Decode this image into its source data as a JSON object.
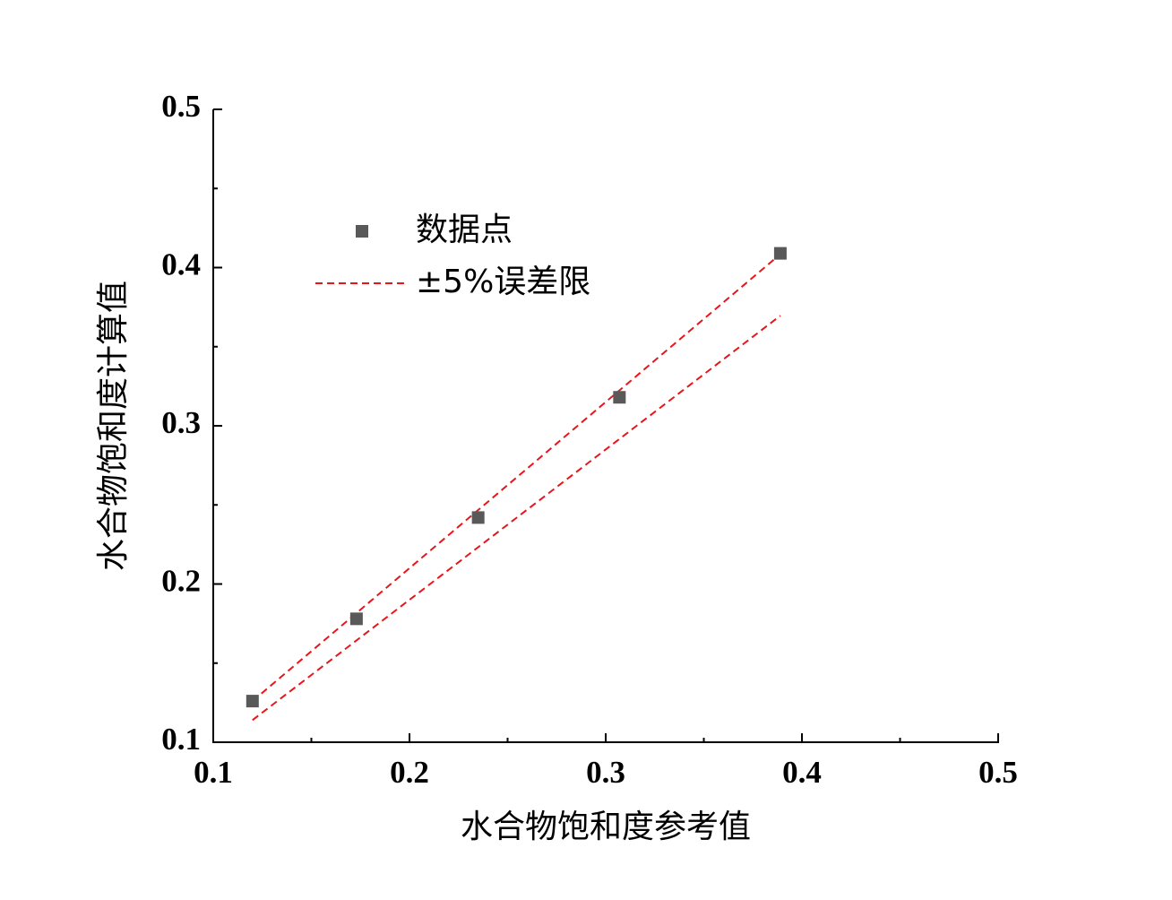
{
  "chart_data": {
    "type": "scatter",
    "x_label": "水合物饱和度参考值",
    "y_label": "水合物饱和度计算值",
    "series": [
      {
        "name": "数据点",
        "color": "#595959",
        "x": [
          0.12,
          0.173,
          0.235,
          0.307,
          0.389
        ],
        "values": [
          0.126,
          0.178,
          0.242,
          0.318,
          0.409
        ]
      }
    ],
    "limit_lines": {
      "name": "±5%误差限",
      "color": "#e8161b",
      "lines": [
        {
          "x": [
            0.12,
            0.389
          ],
          "values": [
            0.126,
            0.4085
          ]
        },
        {
          "x": [
            0.12,
            0.389
          ],
          "values": [
            0.114,
            0.3696
          ]
        }
      ]
    },
    "xlim": [
      0.1,
      0.5
    ],
    "xticks": [
      0.1,
      0.2,
      0.3,
      0.4,
      0.5
    ],
    "xminorticks": [
      0.15,
      0.25,
      0.35,
      0.45
    ],
    "ylim": [
      0.1,
      0.5
    ],
    "yticks": [
      0.1,
      0.2,
      0.3,
      0.4,
      0.5
    ],
    "yminorticks": [
      0.15,
      0.25,
      0.35,
      0.45
    ]
  }
}
